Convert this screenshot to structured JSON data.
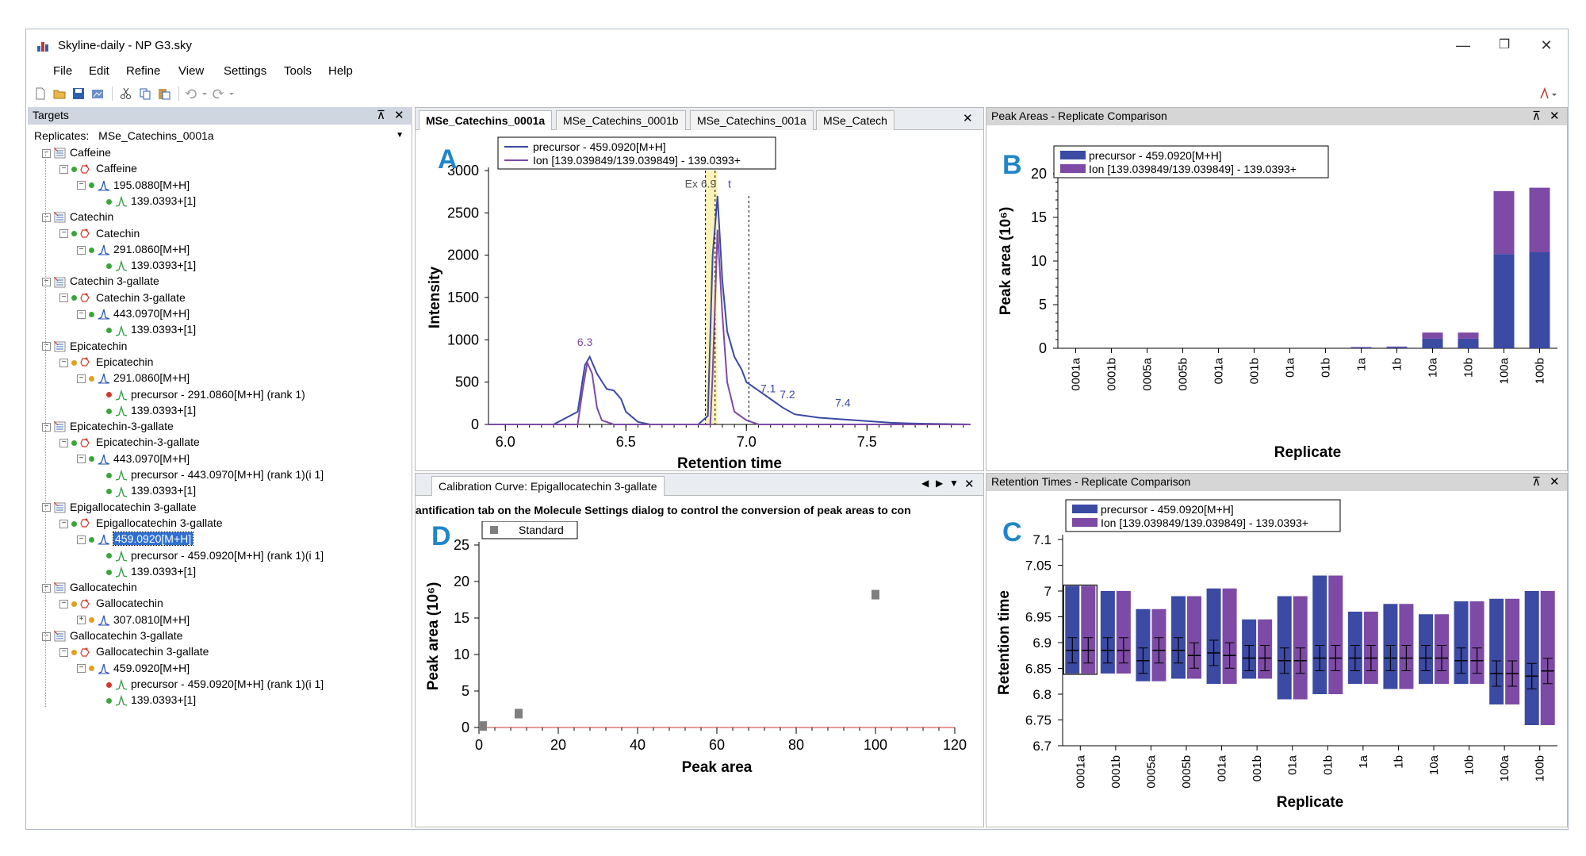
{
  "window": {
    "title": "Skyline-daily - NP G3.sky",
    "controls": {
      "minimize": "—",
      "restore": "❐",
      "close": "✕"
    }
  },
  "menu": [
    "File",
    "Edit",
    "Refine",
    "View",
    "Settings",
    "Tools",
    "Help"
  ],
  "toolbar_icons": [
    "new-icon",
    "open-icon",
    "save-icon",
    "share-icon",
    "cut-icon",
    "copy-icon",
    "paste-icon",
    "undo-icon",
    "redo-icon"
  ],
  "targets": {
    "title": "Targets",
    "replicates_label": "Replicates:",
    "replicate_value": "MSe_Catechins_0001a",
    "tree": [
      {
        "level": 0,
        "kind": "group",
        "label": "Caffeine",
        "toggle": "⊟"
      },
      {
        "level": 1,
        "kind": "molecule",
        "label": "Caffeine",
        "toggle": "⊟",
        "dot": "green"
      },
      {
        "level": 2,
        "kind": "precursor",
        "label": "195.0880[M+H]",
        "toggle": "⊟",
        "dot": "green"
      },
      {
        "level": 3,
        "kind": "transition",
        "label": "139.0393+[1]",
        "dot": "green"
      },
      {
        "level": 0,
        "kind": "group",
        "label": "Catechin",
        "toggle": "⊟"
      },
      {
        "level": 1,
        "kind": "molecule",
        "label": "Catechin",
        "toggle": "⊟",
        "dot": "green"
      },
      {
        "level": 2,
        "kind": "precursor",
        "label": "291.0860[M+H]",
        "toggle": "⊟",
        "dot": "green"
      },
      {
        "level": 3,
        "kind": "transition",
        "label": "139.0393+[1]",
        "dot": "green"
      },
      {
        "level": 0,
        "kind": "group",
        "label": "Catechin 3-gallate",
        "toggle": "⊟"
      },
      {
        "level": 1,
        "kind": "molecule",
        "label": "Catechin 3-gallate",
        "toggle": "⊟",
        "dot": "green"
      },
      {
        "level": 2,
        "kind": "precursor",
        "label": "443.0970[M+H]",
        "toggle": "⊟",
        "dot": "green"
      },
      {
        "level": 3,
        "kind": "transition",
        "label": "139.0393+[1]",
        "dot": "green"
      },
      {
        "level": 0,
        "kind": "group",
        "label": "Epicatechin",
        "toggle": "⊟"
      },
      {
        "level": 1,
        "kind": "molecule",
        "label": "Epicatechin",
        "toggle": "⊟",
        "dot": "orange"
      },
      {
        "level": 2,
        "kind": "precursor",
        "label": "291.0860[M+H]",
        "toggle": "⊟",
        "dot": "orange"
      },
      {
        "level": 3,
        "kind": "transition",
        "label": "precursor - 291.0860[M+H] (rank 1)",
        "dot": "red"
      },
      {
        "level": 3,
        "kind": "transition",
        "label": "139.0393+[1]",
        "dot": "green"
      },
      {
        "level": 0,
        "kind": "group",
        "label": "Epicatechin-3-gallate",
        "toggle": "⊟"
      },
      {
        "level": 1,
        "kind": "molecule",
        "label": "Epicatechin-3-gallate",
        "toggle": "⊟",
        "dot": "green"
      },
      {
        "level": 2,
        "kind": "precursor",
        "label": "443.0970[M+H]",
        "toggle": "⊟",
        "dot": "green"
      },
      {
        "level": 3,
        "kind": "transition",
        "label": "precursor - 443.0970[M+H] (rank 1)(i 1]",
        "dot": "green"
      },
      {
        "level": 3,
        "kind": "transition",
        "label": "139.0393+[1]",
        "dot": "green"
      },
      {
        "level": 0,
        "kind": "group",
        "label": "Epigallocatechin 3-gallate",
        "toggle": "⊟"
      },
      {
        "level": 1,
        "kind": "molecule",
        "label": "Epigallocatechin 3-gallate",
        "toggle": "⊟",
        "dot": "green"
      },
      {
        "level": 2,
        "kind": "precursor",
        "label": "459.0920[M+H]",
        "toggle": "⊟",
        "dot": "green",
        "selected": true
      },
      {
        "level": 3,
        "kind": "transition",
        "label": "precursor - 459.0920[M+H] (rank 1)(i 1]",
        "dot": "green"
      },
      {
        "level": 3,
        "kind": "transition",
        "label": "139.0393+[1]",
        "dot": "green"
      },
      {
        "level": 0,
        "kind": "group",
        "label": "Gallocatechin",
        "toggle": "⊟"
      },
      {
        "level": 1,
        "kind": "molecule",
        "label": "Gallocatechin",
        "toggle": "⊟",
        "dot": "orange"
      },
      {
        "level": 2,
        "kind": "precursor",
        "label": "307.0810[M+H]",
        "toggle": "⊞",
        "dot": "orange"
      },
      {
        "level": 0,
        "kind": "group",
        "label": "Gallocatechin 3-gallate",
        "toggle": "⊟"
      },
      {
        "level": 1,
        "kind": "molecule",
        "label": "Gallocatechin 3-gallate",
        "toggle": "⊟",
        "dot": "orange"
      },
      {
        "level": 2,
        "kind": "precursor",
        "label": "459.0920[M+H]",
        "toggle": "⊟",
        "dot": "orange"
      },
      {
        "level": 3,
        "kind": "transition",
        "label": "precursor - 459.0920[M+H] (rank 1)(i 1]",
        "dot": "red"
      },
      {
        "level": 3,
        "kind": "transition",
        "label": "139.0393+[1]",
        "dot": "green"
      }
    ]
  },
  "chrom_tabs": [
    "MSe_Catechins_0001a",
    "MSe_Catechins_0001b",
    "MSe_Catechins_001a",
    "MSe_Catech"
  ],
  "panel_titles": {
    "peak_areas": "Peak Areas - Replicate Comparison",
    "retention_times": "Retention Times - Replicate Comparison",
    "calibration_tab": "Calibration Curve: Epigallocatechin 3-gallate",
    "calibration_msg": "antification tab on the Molecule Settings dialog to control the conversion of peak areas to con"
  },
  "colors": {
    "precursor": "#3b4aa3",
    "ion": "#7d4aa5",
    "standard": "#7f7f7f",
    "label": "#1f86c9",
    "selected": "#2f6fd0"
  },
  "chart_data": [
    {
      "panel": "A",
      "type": "line",
      "xlabel": "Retention time",
      "ylabel": "Intensity",
      "xlim": [
        5.93,
        7.93
      ],
      "ylim": [
        0,
        3000
      ],
      "xticks": [
        6.0,
        6.5,
        7.0,
        7.5
      ],
      "yticks": [
        0,
        500,
        1000,
        1500,
        2000,
        2500,
        3000
      ],
      "legend_position": "top",
      "series": [
        {
          "name": "precursor - 459.0920[M+H]",
          "x": [
            5.93,
            6.2,
            6.3,
            6.33,
            6.35,
            6.38,
            6.42,
            6.45,
            6.48,
            6.5,
            6.55,
            6.6,
            6.7,
            6.8,
            6.84,
            6.86,
            6.88,
            6.9,
            6.92,
            6.95,
            6.98,
            7.0,
            7.05,
            7.1,
            7.15,
            7.2,
            7.3,
            7.4,
            7.5,
            7.6,
            7.7,
            7.93
          ],
          "y": [
            0,
            0,
            150,
            700,
            800,
            600,
            420,
            400,
            300,
            150,
            30,
            0,
            0,
            0,
            100,
            2000,
            2700,
            1700,
            1100,
            800,
            650,
            500,
            400,
            300,
            200,
            120,
            80,
            60,
            40,
            20,
            10,
            0
          ]
        },
        {
          "name": "Ion [139.039849/139.039849] - 139.0393+",
          "x": [
            5.93,
            6.3,
            6.32,
            6.34,
            6.36,
            6.38,
            6.4,
            6.45,
            6.6,
            6.85,
            6.86,
            6.88,
            6.9,
            6.92,
            6.95,
            7.0,
            7.05,
            7.93
          ],
          "y": [
            0,
            0,
            400,
            730,
            600,
            200,
            50,
            0,
            0,
            0,
            600,
            2300,
            1300,
            500,
            150,
            50,
            0,
            0
          ]
        }
      ],
      "annotations": [
        "6.3",
        "Ex 6.9",
        "t",
        "7.1",
        "7.2",
        "7.4"
      ]
    },
    {
      "panel": "B",
      "type": "bar",
      "xlabel": "Replicate",
      "ylabel": "Peak area (10⁶)",
      "ylim": [
        0,
        20
      ],
      "yticks": [
        0,
        5,
        10,
        15,
        20
      ],
      "stacked": true,
      "legend_position": "top-left",
      "categories": [
        "0001a",
        "0001b",
        "0005a",
        "0005b",
        "001a",
        "001b",
        "01a",
        "01b",
        "1a",
        "1b",
        "10a",
        "10b",
        "100a",
        "100b"
      ],
      "series": [
        {
          "name": "precursor - 459.0920[M+H]",
          "values": [
            0,
            0,
            0,
            0,
            0,
            0,
            0,
            0,
            0.1,
            0.15,
            1.1,
            1.1,
            10.8,
            11.0
          ]
        },
        {
          "name": "Ion [139.039849/139.039849] - 139.0393+",
          "values": [
            0,
            0,
            0,
            0,
            0,
            0,
            0,
            0,
            0.05,
            0.05,
            0.7,
            0.7,
            7.2,
            7.4
          ]
        }
      ]
    },
    {
      "panel": "C",
      "type": "bar",
      "xlabel": "Replicate",
      "ylabel": "Retention time",
      "ylim": [
        6.7,
        7.1
      ],
      "yticks": [
        6.7,
        6.75,
        6.8,
        6.85,
        6.9,
        6.95,
        7.0,
        7.05,
        7.1
      ],
      "legend_position": "top-left",
      "categories": [
        "0001a",
        "0001b",
        "0005a",
        "0005b",
        "001a",
        "001b",
        "01a",
        "01b",
        "1a",
        "1b",
        "10a",
        "10b",
        "100a",
        "100b"
      ],
      "series": [
        {
          "name": "precursor - 459.0920[M+H]",
          "start": [
            6.84,
            6.84,
            6.825,
            6.83,
            6.82,
            6.83,
            6.79,
            6.8,
            6.82,
            6.81,
            6.82,
            6.82,
            6.78,
            6.74
          ],
          "end": [
            7.01,
            7.0,
            6.965,
            6.99,
            7.005,
            6.945,
            6.99,
            7.03,
            6.96,
            6.975,
            6.955,
            6.98,
            6.985,
            7.0
          ],
          "apex": [
            6.885,
            6.885,
            6.865,
            6.885,
            6.88,
            6.87,
            6.865,
            6.87,
            6.87,
            6.87,
            6.87,
            6.865,
            6.84,
            6.835
          ]
        },
        {
          "name": "Ion [139.039849/139.039849] - 139.0393+",
          "start": [
            6.84,
            6.84,
            6.825,
            6.83,
            6.82,
            6.83,
            6.79,
            6.8,
            6.82,
            6.81,
            6.82,
            6.82,
            6.78,
            6.74
          ],
          "end": [
            7.01,
            7.0,
            6.965,
            6.99,
            7.005,
            6.945,
            6.99,
            7.03,
            6.96,
            6.975,
            6.955,
            6.98,
            6.985,
            7.0
          ],
          "apex": [
            6.885,
            6.885,
            6.885,
            6.875,
            6.875,
            6.87,
            6.865,
            6.87,
            6.87,
            6.87,
            6.87,
            6.865,
            6.84,
            6.845
          ]
        }
      ]
    },
    {
      "panel": "D",
      "type": "scatter",
      "xlabel": "Peak area",
      "ylabel": "Peak area (10⁶)",
      "xlim": [
        0,
        120
      ],
      "ylim": [
        0,
        25
      ],
      "xticks": [
        0,
        20,
        40,
        60,
        80,
        100,
        120
      ],
      "yticks": [
        0,
        5,
        10,
        15,
        20,
        25
      ],
      "legend_position": "top-left",
      "series": [
        {
          "name": "Standard",
          "x": [
            1,
            10,
            100
          ],
          "y": [
            0.2,
            1.9,
            18.2
          ]
        }
      ]
    }
  ]
}
